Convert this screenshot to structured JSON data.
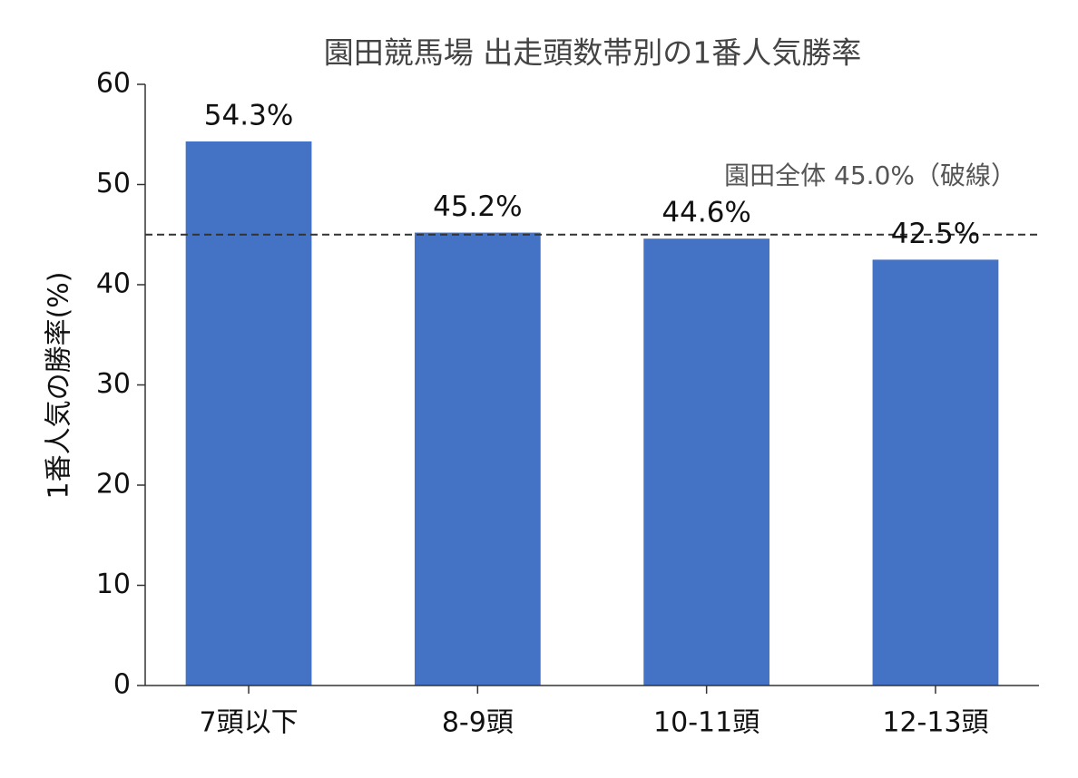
{
  "chart_data": {
    "type": "bar",
    "title": "園田競馬場 出走頭数帯別の1番人気勝率",
    "ylabel": "1番人気の勝率(%)",
    "categories": [
      "7頭以下",
      "8-9頭",
      "10-11頭",
      "12-13頭"
    ],
    "values": [
      54.3,
      45.2,
      44.6,
      42.5
    ],
    "value_labels": [
      "54.3%",
      "45.2%",
      "44.6%",
      "42.5%"
    ],
    "color": "#4472c4",
    "ylim": [
      0,
      60
    ],
    "yticks": [
      0,
      10,
      20,
      30,
      40,
      50,
      60
    ],
    "reference_line": {
      "value": 45.0,
      "label": "園田全体 45.0%（破線）",
      "color": "#333333"
    }
  }
}
